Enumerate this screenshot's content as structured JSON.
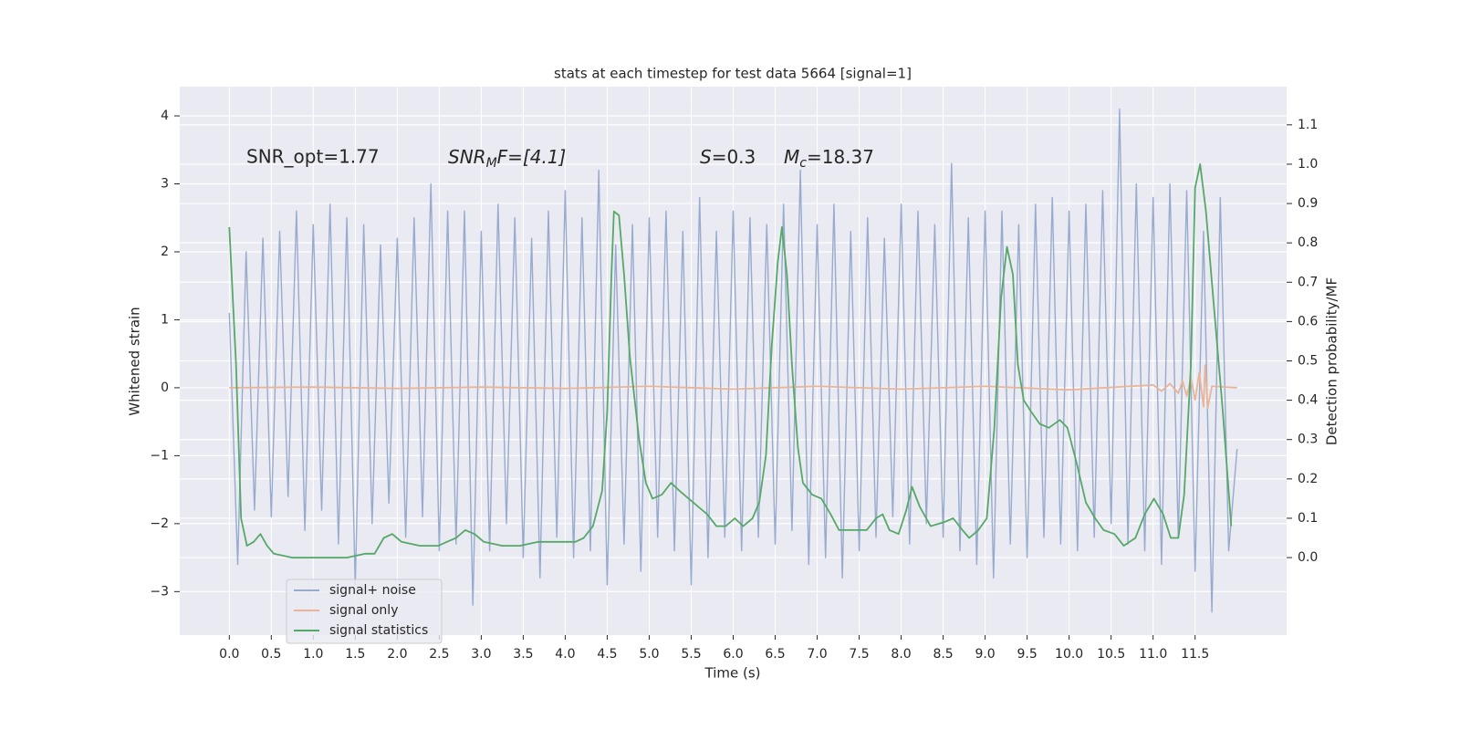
{
  "chart_data": {
    "type": "line",
    "title": "stats at each timestep for test data 5664 [signal=1]",
    "xlabel": "Time (s)",
    "ylabel": "Whitened strain",
    "y2label": "Detection probability/MF",
    "xlim": [
      -0.59,
      12.59
    ],
    "xticks": [
      {
        "value": 0,
        "label": "0.0"
      },
      0.5,
      {
        "value": 1,
        "label": "1.0"
      },
      1.5,
      {
        "value": 2,
        "label": "2.0"
      },
      2.5,
      {
        "value": 3,
        "label": "3.0"
      },
      3.5,
      {
        "value": 4,
        "label": "4.0"
      },
      4.5,
      {
        "value": 5,
        "label": "5.0"
      },
      5.5,
      {
        "value": 6,
        "label": "6.0"
      },
      6.5,
      {
        "value": 7,
        "label": "7.0"
      },
      7.5,
      {
        "value": 8,
        "label": "8.0"
      },
      8.5,
      {
        "value": 9,
        "label": "9.0"
      },
      9.5,
      {
        "value": 10,
        "label": "10.0"
      },
      10.5,
      {
        "value": 11,
        "label": "11.0"
      },
      11.5
    ],
    "ylim": [
      -3.64,
      4.43
    ],
    "yticks": [
      {
        "value": -3,
        "label": "−3"
      },
      {
        "value": -2,
        "label": "−2"
      },
      {
        "value": -1,
        "label": "−1"
      },
      0,
      1,
      2,
      3,
      4
    ],
    "y2lim": [
      -0.197,
      1.197
    ],
    "y2ticks": [
      {
        "value": 0,
        "label": "0.0"
      },
      0.1,
      0.2,
      0.3,
      0.4,
      0.5,
      0.6,
      0.7,
      0.8,
      0.9,
      {
        "value": 1,
        "label": "1.0"
      },
      1.1
    ],
    "grid": true,
    "legend_loc": "lower left",
    "annotations": [
      {
        "text": "SNR_opt=1.77"
      },
      {
        "base": "SNR",
        "sub": "M",
        "tail": "F=[4.1]"
      },
      {
        "base": "S",
        "tail": "=0.3"
      },
      {
        "base": "M",
        "sub": "c",
        "tail": "=18.37"
      }
    ],
    "series": [
      {
        "name": "signal+ noise",
        "color": "#98aace",
        "axis": "y",
        "x": [
          0,
          0.1,
          0.2,
          0.3,
          0.4,
          0.5,
          0.6,
          0.7,
          0.8,
          0.9,
          1,
          1.1,
          1.2,
          1.3,
          1.4,
          1.5,
          1.6,
          1.7,
          1.8,
          1.9,
          2,
          2.1,
          2.2,
          2.3,
          2.4,
          2.5,
          2.6,
          2.7,
          2.8,
          2.9,
          3,
          3.1,
          3.2,
          3.3,
          3.4,
          3.5,
          3.6,
          3.7,
          3.8,
          3.9,
          4,
          4.1,
          4.2,
          4.3,
          4.4,
          4.5,
          4.6,
          4.7,
          4.8,
          4.9,
          5,
          5.1,
          5.2,
          5.3,
          5.4,
          5.5,
          5.6,
          5.7,
          5.8,
          5.9,
          6,
          6.1,
          6.2,
          6.3,
          6.4,
          6.5,
          6.6,
          6.7,
          6.8,
          6.9,
          7,
          7.1,
          7.2,
          7.3,
          7.4,
          7.5,
          7.6,
          7.7,
          7.8,
          7.9,
          8,
          8.1,
          8.2,
          8.3,
          8.4,
          8.5,
          8.6,
          8.7,
          8.8,
          8.9,
          9,
          9.1,
          9.2,
          9.3,
          9.4,
          9.5,
          9.6,
          9.7,
          9.8,
          9.9,
          10,
          10.1,
          10.2,
          10.3,
          10.4,
          10.5,
          10.6,
          10.7,
          10.8,
          10.9,
          11,
          11.1,
          11.2,
          11.3,
          11.4,
          11.5,
          11.6,
          11.7,
          11.8,
          11.9,
          12
        ],
        "values": [
          1.1,
          -2.6,
          2.0,
          -1.8,
          2.2,
          -1.9,
          2.3,
          -1.6,
          2.6,
          -2.1,
          2.4,
          -1.8,
          2.7,
          -2.3,
          2.5,
          -2.9,
          2.4,
          -2.0,
          2.1,
          -1.7,
          2.2,
          -2.2,
          2.5,
          -1.9,
          3.0,
          -2.4,
          2.6,
          -2.3,
          2.6,
          -3.2,
          2.3,
          -2.4,
          2.7,
          -2.0,
          2.5,
          -2.5,
          2.2,
          -2.8,
          2.6,
          -2.2,
          2.9,
          -2.5,
          2.5,
          -2.4,
          3.2,
          -2.9,
          2.1,
          -2.3,
          2.4,
          -2.7,
          2.5,
          -2.2,
          2.6,
          -2.4,
          2.3,
          -2.9,
          2.8,
          -2.5,
          2.3,
          -2.2,
          2.6,
          -2.4,
          2.5,
          -2.2,
          2.4,
          -2.3,
          2.7,
          -2.1,
          3.2,
          -2.6,
          2.4,
          -2.5,
          2.7,
          -2.8,
          2.3,
          -2.4,
          2.5,
          -2.2,
          2.2,
          -1.9,
          2.7,
          -2.3,
          2.6,
          -2.0,
          2.4,
          -2.2,
          3.3,
          -2.4,
          2.5,
          -2.6,
          2.6,
          -2.8,
          2.6,
          -2.3,
          2.4,
          -2.5,
          2.7,
          -2.2,
          2.8,
          -2.3,
          2.6,
          -2.4,
          2.7,
          -2.2,
          2.9,
          -2.0,
          4.1,
          -2.3,
          3.0,
          -2.4,
          2.8,
          -2.6,
          3.0,
          -2.2,
          2.9,
          -2.7,
          2.3,
          -3.3,
          2.8,
          -2.4,
          -0.9
        ]
      },
      {
        "name": "signal only",
        "color": "#e8b59a",
        "axis": "y",
        "x": [
          0,
          1,
          2,
          3,
          4,
          5,
          6,
          7,
          8,
          9,
          10,
          11,
          11.1,
          11.2,
          11.3,
          11.35,
          11.4,
          11.45,
          11.5,
          11.55,
          11.6,
          11.62,
          11.65,
          11.7,
          12
        ],
        "values": [
          0,
          0.01,
          -0.01,
          0.01,
          -0.01,
          0.02,
          -0.02,
          0.02,
          -0.02,
          0.02,
          -0.03,
          0.04,
          -0.05,
          0.06,
          -0.08,
          0.1,
          -0.12,
          0.14,
          -0.18,
          0.22,
          -0.28,
          0.33,
          -0.3,
          0.02,
          0
        ]
      },
      {
        "name": "signal statistics",
        "color": "#55a868",
        "axis": "y2",
        "x": [
          0,
          0.08,
          0.14,
          0.21,
          0.29,
          0.37,
          0.45,
          0.53,
          0.75,
          0.97,
          1.18,
          1.4,
          1.62,
          1.73,
          1.84,
          1.94,
          2.05,
          2.27,
          2.38,
          2.49,
          2.59,
          2.7,
          2.81,
          2.92,
          3.03,
          3.25,
          3.46,
          3.68,
          3.9,
          4.12,
          4.22,
          4.33,
          4.44,
          4.5,
          4.55,
          4.58,
          4.64,
          4.7,
          4.77,
          4.88,
          4.96,
          5.04,
          5.15,
          5.26,
          5.36,
          5.47,
          5.58,
          5.69,
          5.8,
          5.91,
          6.02,
          6.12,
          6.23,
          6.31,
          6.39,
          6.46,
          6.53,
          6.58,
          6.64,
          6.7,
          6.77,
          6.83,
          6.94,
          7.05,
          7.16,
          7.26,
          7.43,
          7.59,
          7.7,
          7.78,
          7.86,
          7.97,
          8.06,
          8.13,
          8.22,
          8.35,
          8.51,
          8.62,
          8.73,
          8.81,
          8.92,
          9.02,
          9.11,
          9.19,
          9.26,
          9.33,
          9.39,
          9.46,
          9.55,
          9.65,
          9.76,
          9.89,
          9.98,
          10.09,
          10.2,
          10.31,
          10.41,
          10.54,
          10.65,
          10.79,
          10.9,
          11.01,
          11.12,
          11.21,
          11.3,
          11.37,
          11.45,
          11.5,
          11.56,
          11.63,
          11.72,
          11.83,
          11.93
        ],
        "values": [
          0.84,
          0.49,
          0.1,
          0.03,
          0.04,
          0.06,
          0.03,
          0.01,
          0.0,
          0.0,
          0.0,
          0.0,
          0.01,
          0.01,
          0.05,
          0.06,
          0.04,
          0.03,
          0.03,
          0.03,
          0.04,
          0.05,
          0.07,
          0.06,
          0.04,
          0.03,
          0.03,
          0.04,
          0.04,
          0.04,
          0.05,
          0.08,
          0.17,
          0.37,
          0.72,
          0.88,
          0.87,
          0.72,
          0.51,
          0.3,
          0.19,
          0.15,
          0.16,
          0.19,
          0.17,
          0.15,
          0.13,
          0.11,
          0.08,
          0.08,
          0.1,
          0.08,
          0.1,
          0.14,
          0.26,
          0.54,
          0.75,
          0.84,
          0.72,
          0.49,
          0.28,
          0.19,
          0.16,
          0.15,
          0.11,
          0.07,
          0.07,
          0.07,
          0.1,
          0.11,
          0.07,
          0.06,
          0.12,
          0.18,
          0.13,
          0.08,
          0.09,
          0.1,
          0.07,
          0.05,
          0.07,
          0.1,
          0.33,
          0.66,
          0.79,
          0.72,
          0.49,
          0.4,
          0.37,
          0.34,
          0.33,
          0.35,
          0.33,
          0.24,
          0.14,
          0.1,
          0.07,
          0.06,
          0.03,
          0.05,
          0.11,
          0.15,
          0.11,
          0.05,
          0.05,
          0.16,
          0.49,
          0.94,
          1.0,
          0.88,
          0.65,
          0.37,
          0.08
        ]
      }
    ]
  }
}
